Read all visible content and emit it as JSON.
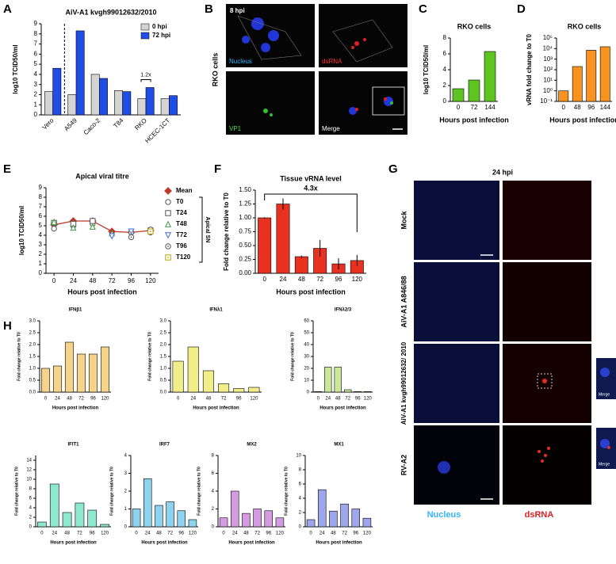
{
  "chart_data": [
    {
      "type": "bar",
      "title": "AiV-A1 kvgh99012632/2010",
      "y_label": "log10 TCID50/ml",
      "categories": [
        "Vero",
        "A549",
        "Caco-2",
        "T84",
        "RKO",
        "HCEC-1CT"
      ],
      "series": [
        {
          "name": "0 hpi",
          "color": "#d4d4d4",
          "values": [
            2.3,
            2.0,
            4.0,
            2.4,
            1.6,
            1.6
          ]
        },
        {
          "name": "72 hpi",
          "color": "#1f4de6",
          "values": [
            4.6,
            8.3,
            3.6,
            2.3,
            2.7,
            1.9
          ]
        }
      ],
      "ylim": [
        0,
        9
      ],
      "yticks": [
        0,
        1,
        2,
        3,
        4,
        5,
        6,
        7,
        8,
        9
      ],
      "annotation": "1.2x"
    },
    {
      "type": "bar",
      "title": "RKO cells",
      "y_label": "log10 TCID50/ml",
      "x_label": "Hours post infection",
      "categories": [
        "0",
        "72",
        "144"
      ],
      "values": [
        1.6,
        2.7,
        6.3
      ],
      "color": "#5ec421",
      "ylim": [
        0,
        8
      ],
      "yticks": [
        0,
        2,
        4,
        6,
        8
      ]
    },
    {
      "type": "bar",
      "title": "RKO cells",
      "y_label": "vRNA fold change to T0",
      "x_label": "Hours post infection",
      "categories": [
        "0",
        "48",
        "96",
        "144"
      ],
      "values": [
        1,
        200,
        7000,
        15000
      ],
      "color": "#f7931e",
      "log_scale": true,
      "ylim": [
        0.1,
        100000
      ],
      "yticks": [
        {
          "value": 0.1,
          "label": "10⁻¹"
        },
        {
          "value": 1,
          "label": "10⁰"
        },
        {
          "value": 10,
          "label": "10¹"
        },
        {
          "value": 100,
          "label": "10²"
        },
        {
          "value": 1000,
          "label": "10³"
        },
        {
          "value": 10000,
          "label": "10⁴"
        },
        {
          "value": 100000,
          "label": "10⁵"
        }
      ]
    },
    {
      "type": "line",
      "title": "Apical viral titre",
      "y_label": "log10 TCID50/ml",
      "x_label": "Hours post infection",
      "x": [
        0,
        24,
        48,
        72,
        96,
        120
      ],
      "xlim": [
        -10,
        130
      ],
      "xticks": [
        0,
        24,
        48,
        72,
        96,
        120
      ],
      "series": [
        {
          "name": "Mean",
          "color": "#c0392b",
          "marker": "diamond",
          "values": [
            5.1,
            5.5,
            5.5,
            4.4,
            4.3,
            4.5
          ]
        },
        {
          "name": "T0",
          "color": "#555555",
          "marker": "circle",
          "values": [
            4.7,
            5.0,
            5.2,
            null,
            4.3,
            4.3
          ]
        },
        {
          "name": "T24",
          "color": "#555555",
          "marker": "square",
          "values": [
            5.3,
            5.2,
            5.5,
            null,
            null,
            4.5
          ]
        },
        {
          "name": "T48",
          "color": "#3a9a3a",
          "marker": "triangle",
          "values": [
            5.4,
            4.8,
            4.9,
            4.2,
            null,
            null
          ]
        },
        {
          "name": "T72",
          "color": "#3a6ad6",
          "marker": "triangle-down",
          "values": [
            null,
            null,
            null,
            3.9,
            4.4,
            null
          ]
        },
        {
          "name": "T96",
          "color": "#555555",
          "marker": "circle-dot",
          "values": [
            null,
            null,
            null,
            null,
            3.8,
            4.6
          ]
        },
        {
          "name": "T120",
          "color": "#b8a400",
          "marker": "square-dot",
          "values": [
            null,
            null,
            null,
            null,
            null,
            4.4
          ]
        }
      ],
      "legend_group": "Apical SN",
      "ylim": [
        0,
        9
      ],
      "yticks": [
        0,
        1,
        2,
        3,
        4,
        5,
        6,
        7,
        8,
        9
      ]
    },
    {
      "type": "bar",
      "title": "Tissue vRNA level",
      "y_label": "Fold change relative to T0",
      "x_label": "Hours post infection",
      "categories": [
        "0",
        "24",
        "48",
        "72",
        "96",
        "120"
      ],
      "values": [
        1.0,
        1.25,
        0.3,
        0.45,
        0.17,
        0.23
      ],
      "errors": [
        0.01,
        0.1,
        0.02,
        0.15,
        0.1,
        0.1
      ],
      "color": "#e8321f",
      "annotation": "4.3x",
      "ylim": [
        0,
        1.5
      ],
      "yticks": [
        {
          "value": 0,
          "label": "0.00"
        },
        {
          "value": 0.25,
          "label": "0.25"
        },
        {
          "value": 0.5,
          "label": "0.50"
        },
        {
          "value": 0.75,
          "label": "0.75"
        },
        {
          "value": 1,
          "label": "1.00"
        },
        {
          "value": 1.25,
          "label": "1.25"
        },
        {
          "value": 1.5,
          "label": "1.50"
        }
      ]
    },
    {
      "type": "bar",
      "title": "IFNβ1",
      "y_label": "Fold change relative to T0",
      "x_label": "Hours post infection",
      "categories": [
        "0",
        "24",
        "48",
        "72",
        "96",
        "120"
      ],
      "values": [
        1.0,
        1.1,
        2.1,
        1.6,
        1.6,
        1.9
      ],
      "color": "#f6d38a",
      "ylim": [
        0,
        3
      ],
      "yticks": [
        {
          "value": 0,
          "label": "0.0"
        },
        0.5,
        {
          "value": 1,
          "label": "1.0"
        },
        1.5,
        {
          "value": 2,
          "label": "2.0"
        },
        2.5,
        {
          "value": 3,
          "label": "3.0"
        }
      ]
    },
    {
      "type": "bar",
      "title": "IFNλ1",
      "y_label": "Fold change relative to T0",
      "x_label": "Hours post infection",
      "categories": [
        "0",
        "24",
        "48",
        "72",
        "96",
        "120"
      ],
      "values": [
        1.3,
        1.9,
        0.9,
        0.35,
        0.15,
        0.2
      ],
      "color": "#f1ee8a",
      "ylim": [
        0,
        3
      ],
      "yticks": [
        {
          "value": 0,
          "label": "0.0"
        },
        0.5,
        {
          "value": 1,
          "label": "1.0"
        },
        1.5,
        {
          "value": 2,
          "label": "2.0"
        },
        2.5,
        {
          "value": 3,
          "label": "3.0"
        }
      ]
    },
    {
      "type": "bar",
      "title": "IFNλ2/3",
      "y_label": "Fold change relative to T0",
      "x_label": "Hours post infection",
      "categories": [
        "0",
        "24",
        "48",
        "72",
        "96",
        "120"
      ],
      "values": [
        0.5,
        21,
        21,
        2,
        0.5,
        0.5
      ],
      "color": "#c9e89b",
      "ylim": [
        0,
        60
      ],
      "yticks": [
        0,
        10,
        20,
        30,
        40,
        50,
        60
      ]
    },
    {
      "type": "bar",
      "title": "IFIT1",
      "y_label": "Fold change relative to T0",
      "x_label": "Hours post infection",
      "categories": [
        "0",
        "24",
        "48",
        "72",
        "96",
        "120"
      ],
      "values": [
        1,
        9,
        3,
        5,
        3.5,
        0.5
      ],
      "color": "#8ee8cd",
      "ylim": [
        0,
        15
      ],
      "yticks": [
        0,
        2,
        4,
        6,
        8,
        10,
        12,
        14
      ]
    },
    {
      "type": "bar",
      "title": "IRF7",
      "y_label": "Fold change relative to T0",
      "x_label": "Hours post infection",
      "categories": [
        "0",
        "24",
        "48",
        "72",
        "96",
        "120"
      ],
      "values": [
        1,
        2.7,
        1.2,
        1.4,
        0.9,
        0.4
      ],
      "color": "#8dd2ee",
      "ylim": [
        0,
        4
      ],
      "yticks": [
        0,
        1,
        2,
        3,
        4
      ]
    },
    {
      "type": "bar",
      "title": "MX2",
      "y_label": "Fold change relative to T0",
      "x_label": "Hours post infection",
      "categories": [
        "0",
        "24",
        "48",
        "72",
        "96",
        "120"
      ],
      "values": [
        1,
        4,
        1.5,
        2,
        1.8,
        1
      ],
      "color": "#d59be0",
      "ylim": [
        0,
        8
      ],
      "yticks": [
        0,
        2,
        4,
        6,
        8
      ]
    },
    {
      "type": "bar",
      "title": "MX1",
      "y_label": "Fold change relative to T0",
      "x_label": "Hours post infection",
      "categories": [
        "0",
        "24",
        "48",
        "72",
        "96",
        "120"
      ],
      "values": [
        1,
        5.2,
        2.2,
        3.2,
        2.5,
        1.2
      ],
      "color": "#9ea6ee",
      "ylim": [
        0,
        10
      ],
      "yticks": [
        0,
        2,
        4,
        6,
        8,
        10
      ]
    }
  ],
  "panel_letters": [
    "A",
    "B",
    "C",
    "D",
    "E",
    "F",
    "G",
    "H"
  ],
  "panel_b": {
    "side_label": "RKO cells",
    "time": "8 hpi",
    "tiles": [
      "Nucleus",
      "dsRNA",
      "VP1",
      "Merge"
    ]
  },
  "panel_g": {
    "time": "24 hpi",
    "rows": [
      "Mock",
      "AiV-A1 A846/88",
      "AiV-A1 kvgh99012632/ 2010",
      "RV-A2"
    ],
    "channels": [
      "Nucleus",
      "dsRNA"
    ],
    "insets": [
      "Merge",
      "Merge"
    ]
  }
}
